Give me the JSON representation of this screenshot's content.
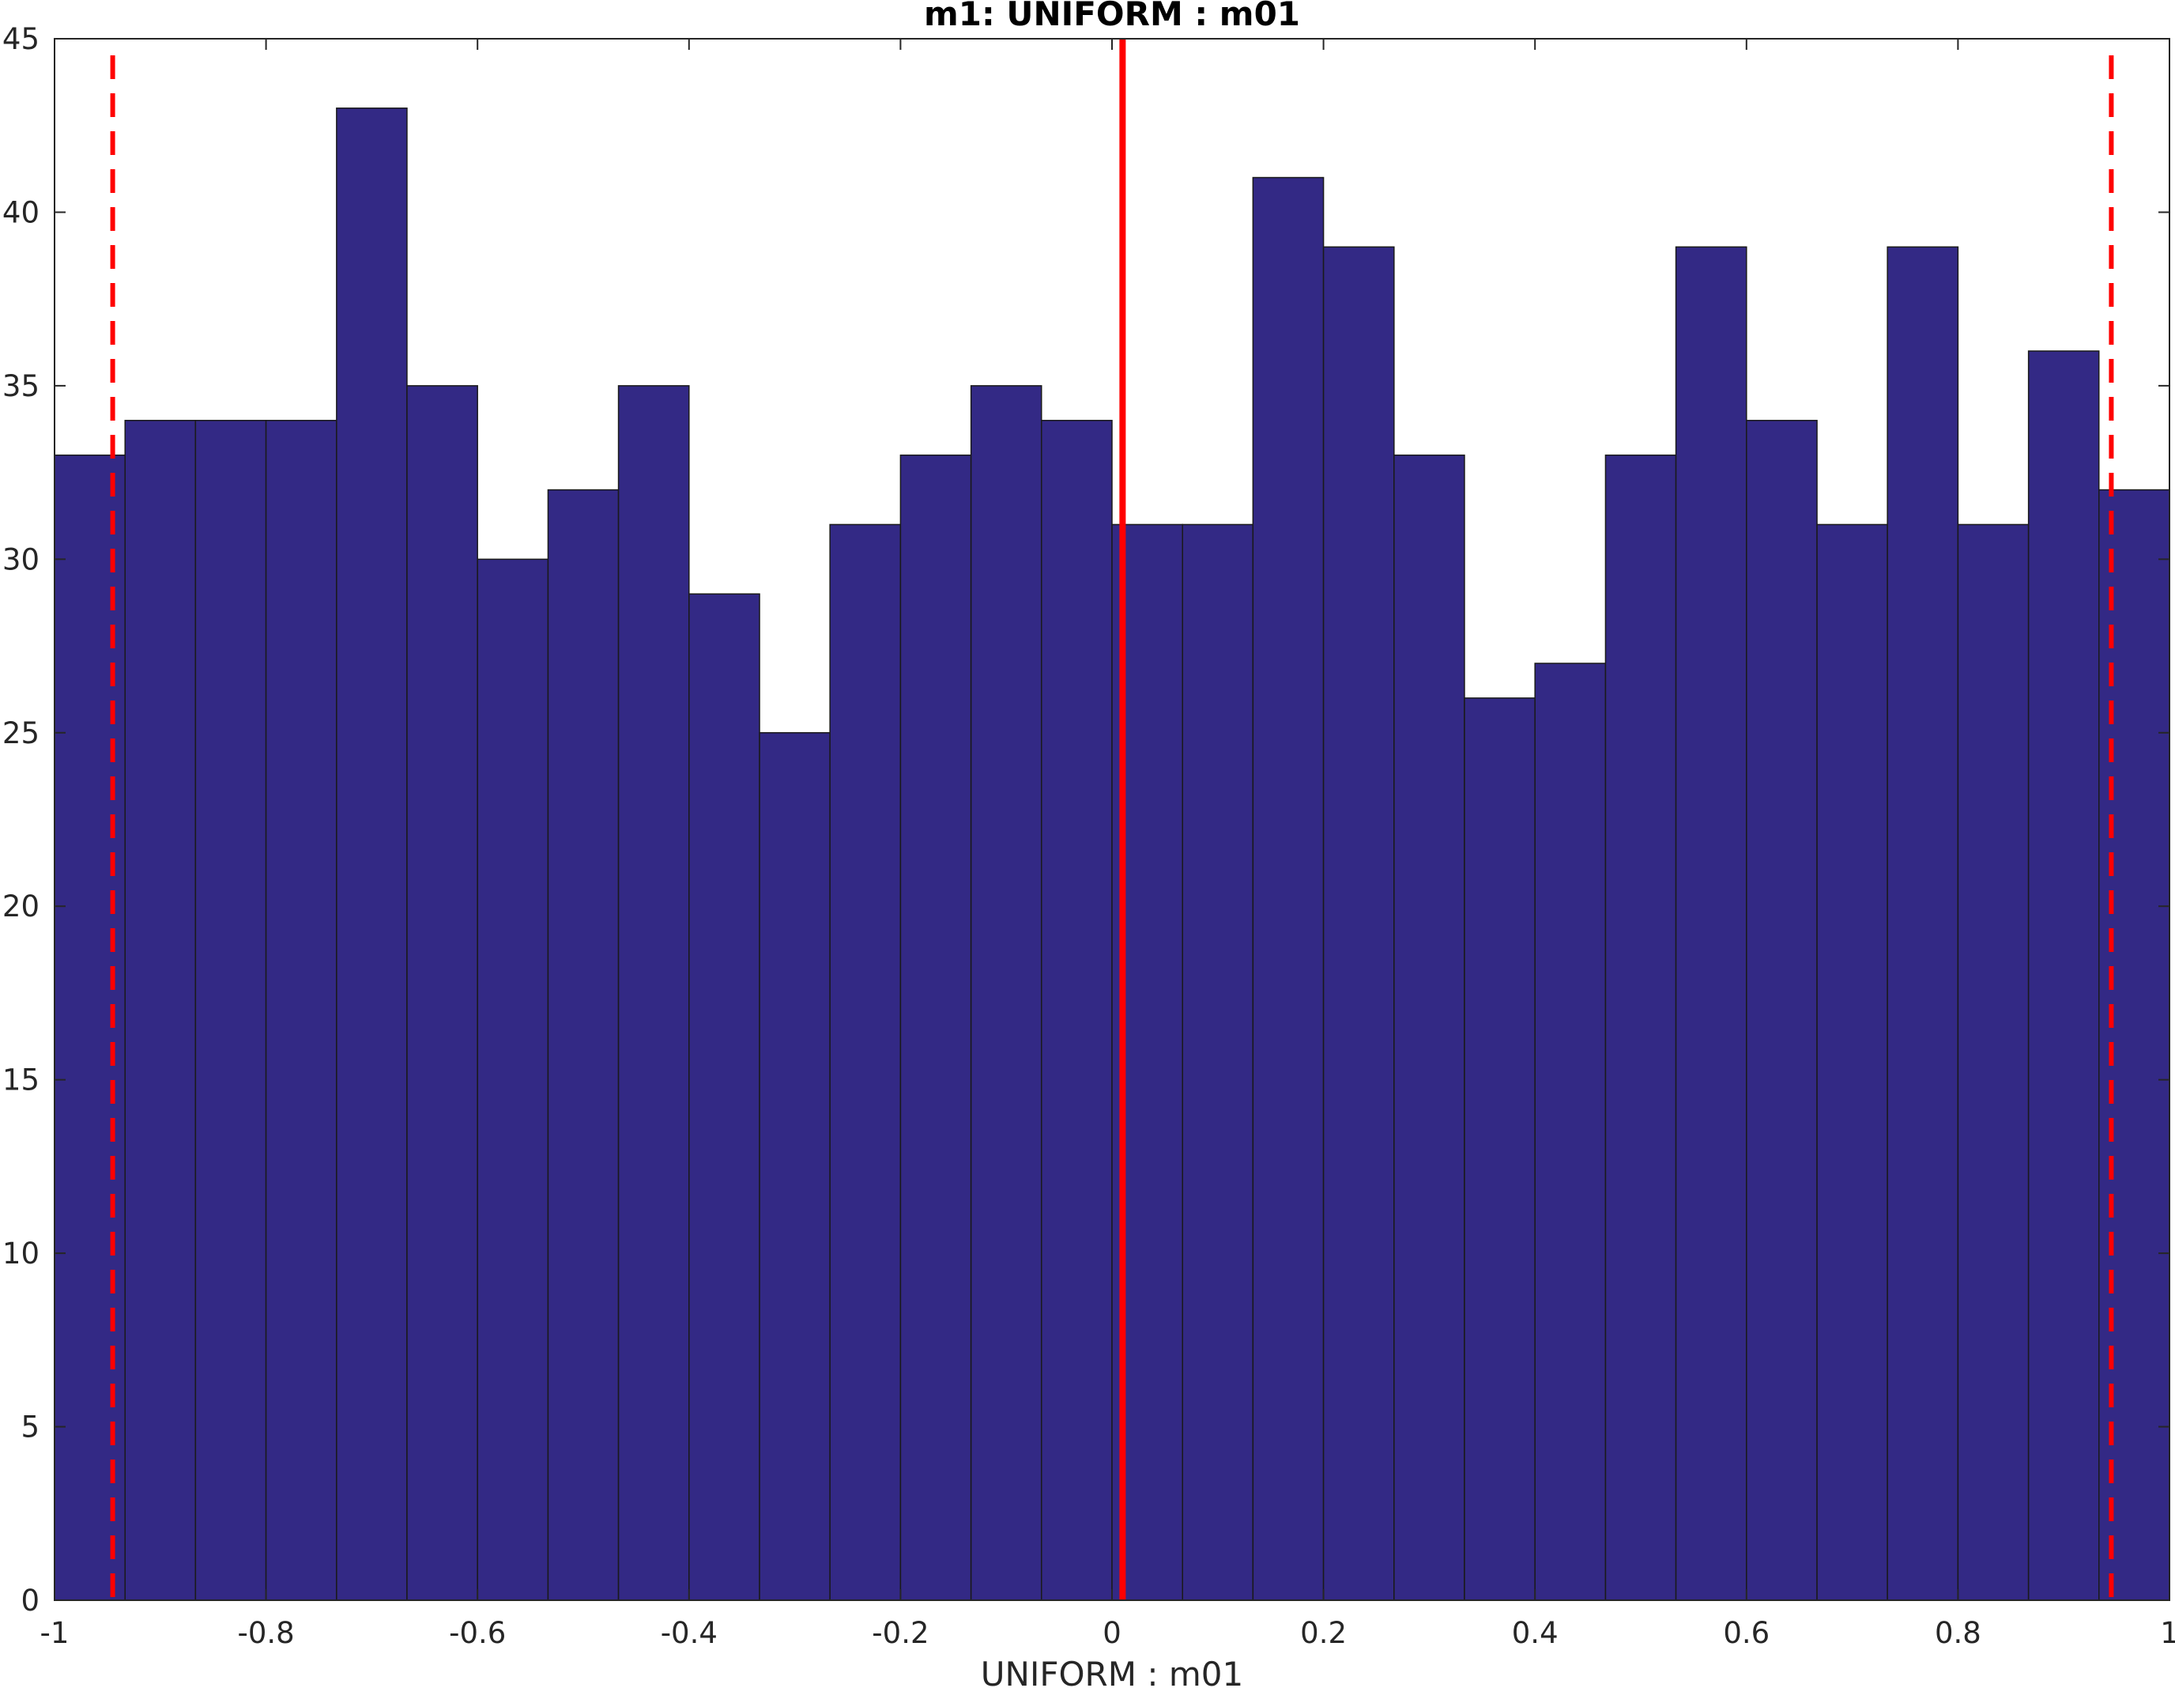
{
  "chart_data": {
    "type": "bar",
    "title": "m1: UNIFORM : m01",
    "xlabel": "UNIFORM : m01",
    "ylabel": "",
    "xlim": [
      -1,
      1
    ],
    "ylim": [
      0,
      45
    ],
    "grid": false,
    "bin_edges": [
      -1.0,
      -0.9333,
      -0.8667,
      -0.8,
      -0.7333,
      -0.6667,
      -0.6,
      -0.5333,
      -0.4667,
      -0.4,
      -0.3333,
      -0.2667,
      -0.2,
      -0.1333,
      -0.0667,
      0.0,
      0.0667,
      0.1333,
      0.2,
      0.2667,
      0.3333,
      0.4,
      0.4667,
      0.5333,
      0.6,
      0.6667,
      0.7333,
      0.8,
      0.8667,
      0.9333,
      1.0
    ],
    "values": [
      33,
      34,
      34,
      34,
      43,
      35,
      30,
      32,
      35,
      29,
      25,
      31,
      33,
      35,
      34,
      31,
      31,
      41,
      39,
      33,
      26,
      27,
      33,
      39,
      34,
      31,
      39,
      31,
      36,
      32
    ],
    "x_ticks": [
      -1,
      -0.8,
      -0.6,
      -0.4,
      -0.2,
      0,
      0.2,
      0.4,
      0.6,
      0.8,
      1
    ],
    "x_tick_labels": [
      "-1",
      "-0.8",
      "-0.6",
      "-0.4",
      "-0.2",
      "0",
      "0.2",
      "0.4",
      "0.6",
      "0.8",
      "1"
    ],
    "y_ticks": [
      0,
      5,
      10,
      15,
      20,
      25,
      30,
      35,
      40,
      45
    ],
    "y_tick_labels": [
      "0",
      "5",
      "10",
      "15",
      "20",
      "25",
      "30",
      "35",
      "40",
      "45"
    ],
    "reference_lines": [
      {
        "x": 0.01,
        "style": "solid"
      },
      {
        "x": -0.945,
        "style": "dashed"
      },
      {
        "x": 0.945,
        "style": "dashed"
      }
    ],
    "colors": {
      "bar_fill": "#332985",
      "bar_edge": "#1a1a1a",
      "reference_line": "#ff0000",
      "axis": "#262626"
    }
  }
}
